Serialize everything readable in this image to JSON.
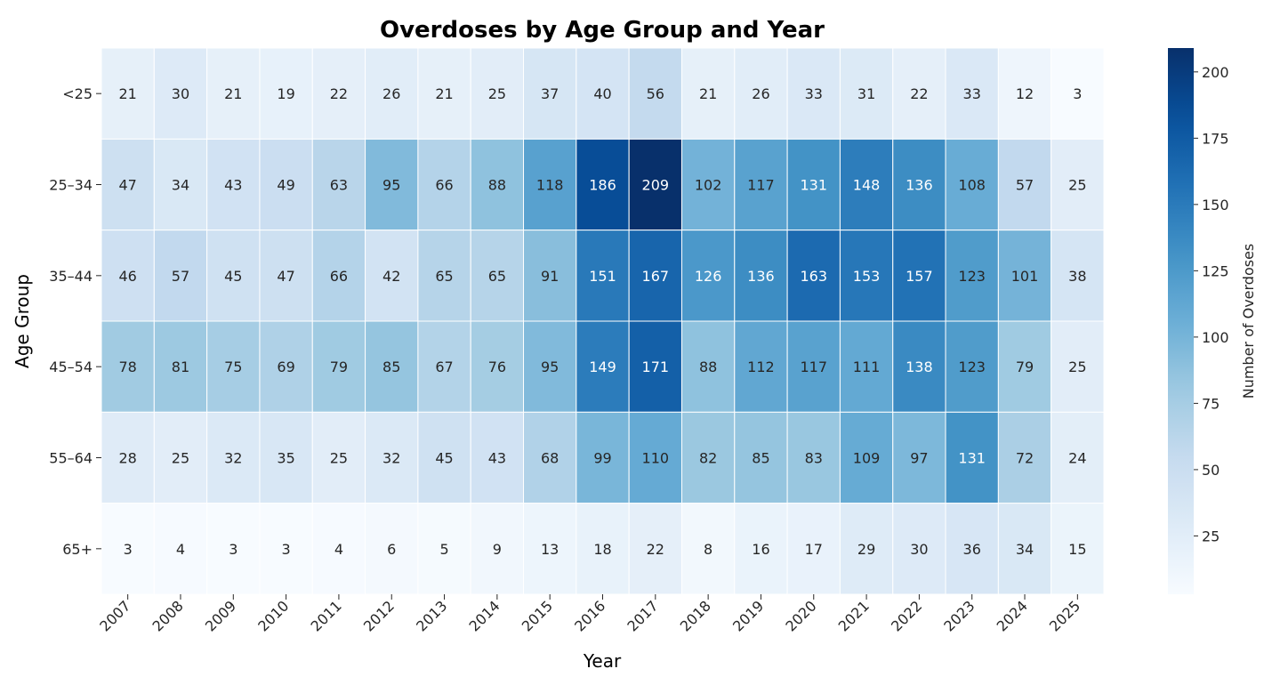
{
  "chart_data": {
    "type": "heatmap",
    "title": "Overdoses by Age Group and Year",
    "xlabel": "Year",
    "ylabel": "Age Group",
    "x": [
      "2007",
      "2008",
      "2009",
      "2010",
      "2011",
      "2012",
      "2013",
      "2014",
      "2015",
      "2016",
      "2017",
      "2018",
      "2019",
      "2020",
      "2021",
      "2022",
      "2023",
      "2024",
      "2025"
    ],
    "y": [
      "<25",
      "25–34",
      "35–44",
      "45–54",
      "55–64",
      "65+"
    ],
    "values": [
      [
        21,
        30,
        21,
        19,
        22,
        26,
        21,
        25,
        37,
        40,
        56,
        21,
        26,
        33,
        31,
        22,
        33,
        12,
        3
      ],
      [
        47,
        34,
        43,
        49,
        63,
        95,
        66,
        88,
        118,
        186,
        209,
        102,
        117,
        131,
        148,
        136,
        108,
        57,
        25
      ],
      [
        46,
        57,
        45,
        47,
        66,
        42,
        65,
        65,
        91,
        151,
        167,
        126,
        136,
        163,
        153,
        157,
        123,
        101,
        38
      ],
      [
        78,
        81,
        75,
        69,
        79,
        85,
        67,
        76,
        95,
        149,
        171,
        88,
        112,
        117,
        111,
        138,
        123,
        79,
        25
      ],
      [
        28,
        25,
        32,
        35,
        25,
        32,
        45,
        43,
        68,
        99,
        110,
        82,
        85,
        83,
        109,
        97,
        131,
        72,
        24
      ],
      [
        3,
        4,
        3,
        3,
        4,
        6,
        5,
        9,
        13,
        18,
        22,
        8,
        16,
        17,
        29,
        30,
        36,
        34,
        15
      ]
    ],
    "colorbar": {
      "label": "Number of Overdoses",
      "colormap": "Blues",
      "range": [
        3,
        209
      ],
      "ticks": [
        25,
        50,
        75,
        100,
        125,
        150,
        175,
        200
      ]
    },
    "annotated": true
  }
}
